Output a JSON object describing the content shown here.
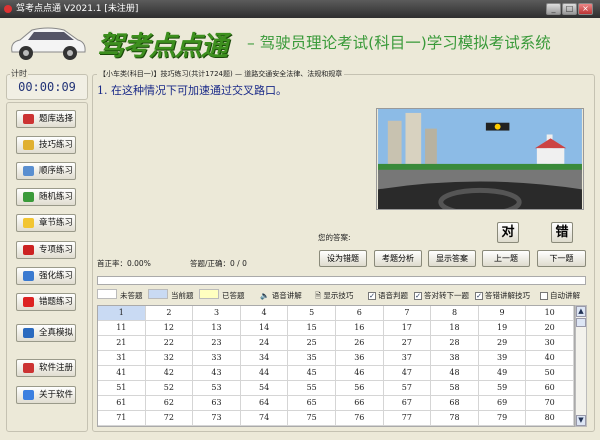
{
  "window": {
    "title": "驾考点点通 V2021.1 [未注册]"
  },
  "header": {
    "brand": "驾考点点通",
    "subtitle": "– 驾驶员理论考试(科目一)学习模拟考试系统"
  },
  "timer": {
    "label": "计时",
    "value": "00:00:09"
  },
  "nav": [
    {
      "label": "题库选择",
      "color": "#c33"
    },
    {
      "label": "技巧练习",
      "color": "#e0b030"
    },
    {
      "label": "顺序练习",
      "color": "#5a8fd0"
    },
    {
      "label": "随机练习",
      "color": "#3a9a3a"
    },
    {
      "label": "章节练习",
      "color": "#f2c531"
    },
    {
      "label": "专项练习",
      "color": "#c22"
    },
    {
      "label": "强化练习",
      "color": "#3a7ad0"
    },
    {
      "label": "错题练习",
      "color": "#d22"
    },
    {
      "label": "全真模拟",
      "color": "#2a6abf"
    },
    {
      "label": "软件注册",
      "color": "#c33"
    },
    {
      "label": "关于软件",
      "color": "#3b7fe0"
    }
  ],
  "main": {
    "breadcrumb": "【小车类(科目一)】技巧练习(共计1724题) — 道路交通安全法律、法规和规章",
    "question": "1. 在这种情况下可加速通过交叉路口。",
    "answer_label": "您的答案:",
    "true_btn": "对",
    "false_btn": "错",
    "accuracy": "首正率：0.00%",
    "answered": "答题/正确：0 / 0",
    "buttons": [
      "设为错题",
      "考题分析",
      "显示答案",
      "上一题",
      "下一题"
    ],
    "legend": {
      "unanswered": "未答题",
      "current": "当前题",
      "answered": "已答题"
    },
    "options": {
      "voice_explain": "语音讲解",
      "show_tips": "显示技巧",
      "voice_judge": "语音判题",
      "next_on_correct": "答对转下一题",
      "explain_on_wrong": "答错讲解技巧",
      "auto_explain": "自动讲解"
    },
    "checked": {
      "voice_judge": true,
      "next_on_correct": true,
      "explain_on_wrong": true,
      "auto_explain": false
    },
    "colors": {
      "unanswered": "#ffffff",
      "current": "#c9daf3",
      "answered": "#ffffc0"
    },
    "grid": [
      [
        1,
        2,
        3,
        4,
        5,
        6,
        7,
        8,
        9,
        10
      ],
      [
        11,
        12,
        13,
        14,
        15,
        16,
        17,
        18,
        19,
        20
      ],
      [
        21,
        22,
        23,
        24,
        25,
        26,
        27,
        28,
        29,
        30
      ],
      [
        31,
        32,
        33,
        34,
        35,
        36,
        37,
        38,
        39,
        40
      ],
      [
        41,
        42,
        43,
        44,
        45,
        46,
        47,
        48,
        49,
        50
      ],
      [
        51,
        52,
        53,
        54,
        55,
        56,
        57,
        58,
        59,
        60
      ],
      [
        61,
        62,
        63,
        64,
        65,
        66,
        67,
        68,
        69,
        70
      ],
      [
        71,
        72,
        73,
        74,
        75,
        76,
        77,
        78,
        79,
        80
      ]
    ],
    "current_question": 1
  }
}
